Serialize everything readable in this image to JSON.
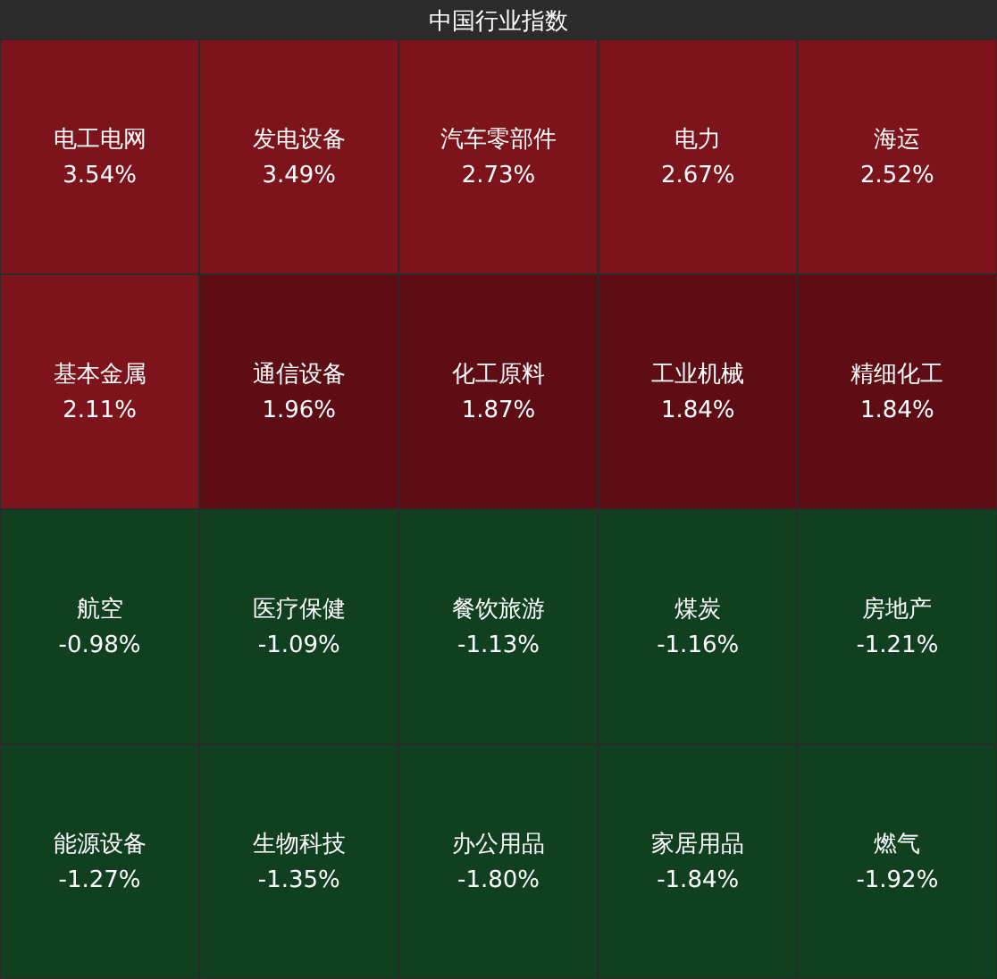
{
  "chart_data": {
    "type": "other",
    "title": "中国行业指数",
    "categories": [
      "电工电网",
      "发电设备",
      "汽车零部件",
      "电力",
      "海运",
      "基本金属",
      "通信设备",
      "化工原料",
      "工业机械",
      "精细化工",
      "航空",
      "医疗保健",
      "餐饮旅游",
      "煤炭",
      "房地产",
      "能源设备",
      "生物科技",
      "办公用品",
      "家居用品",
      "燃气"
    ],
    "values": [
      3.54,
      3.49,
      2.73,
      2.67,
      2.52,
      2.11,
      1.96,
      1.87,
      1.84,
      1.84,
      -0.98,
      -1.09,
      -1.13,
      -1.16,
      -1.21,
      -1.27,
      -1.35,
      -1.8,
      -1.84,
      -1.92
    ],
    "value_labels": [
      "3.54%",
      "3.49%",
      "2.73%",
      "2.67%",
      "2.52%",
      "2.11%",
      "1.96%",
      "1.87%",
      "1.84%",
      "1.84%",
      "-0.98%",
      "-1.09%",
      "-1.13%",
      "-1.16%",
      "-1.21%",
      "-1.27%",
      "-1.35%",
      "-1.80%",
      "-1.84%",
      "-1.92%"
    ],
    "colors": [
      "#7d141b",
      "#7d141b",
      "#7d141b",
      "#7d141b",
      "#7d141b",
      "#7d141b",
      "#5e0d14",
      "#5e0d14",
      "#5e0d14",
      "#5e0d14",
      "#10401f",
      "#10401f",
      "#10401f",
      "#10401f",
      "#10401f",
      "#10401f",
      "#10401f",
      "#10401f",
      "#10401f",
      "#10401f"
    ]
  }
}
